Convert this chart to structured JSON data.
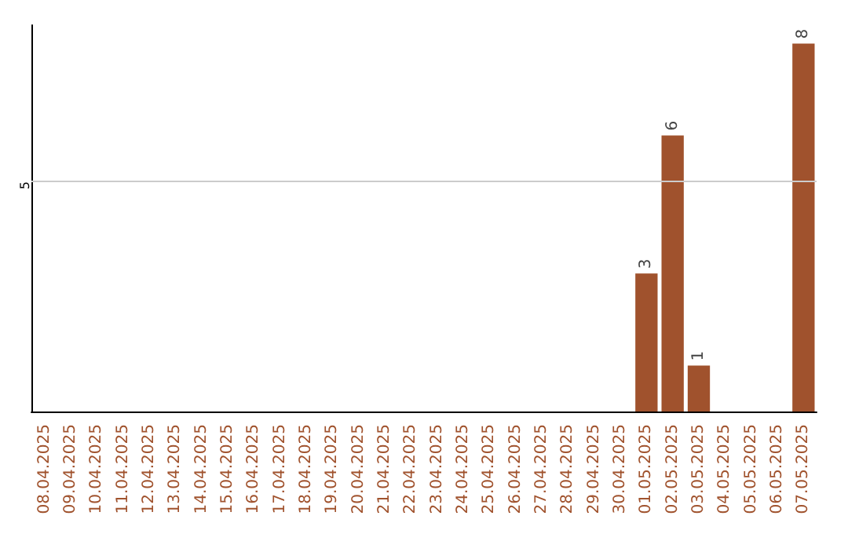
{
  "chart_data": {
    "type": "bar",
    "ylim": [
      0,
      8.4
    ],
    "categories": [
      "08.04.2025",
      "09.04.2025",
      "10.04.2025",
      "11.04.2025",
      "12.04.2025",
      "13.04.2025",
      "14.04.2025",
      "15.04.2025",
      "16.04.2025",
      "17.04.2025",
      "18.04.2025",
      "19.04.2025",
      "20.04.2025",
      "21.04.2025",
      "22.04.2025",
      "23.04.2025",
      "24.04.2025",
      "25.04.2025",
      "26.04.2025",
      "27.04.2025",
      "28.04.2025",
      "29.04.2025",
      "30.04.2025",
      "01.05.2025",
      "02.05.2025",
      "03.05.2025",
      "04.05.2025",
      "05.05.2025",
      "06.05.2025",
      "07.05.2025"
    ],
    "values": [
      null,
      null,
      null,
      null,
      null,
      null,
      null,
      null,
      null,
      null,
      null,
      null,
      null,
      null,
      null,
      null,
      null,
      null,
      null,
      null,
      null,
      null,
      null,
      3,
      6,
      1,
      null,
      null,
      null,
      8
    ],
    "data_labels": true,
    "color": "#a0522d",
    "ref_lines": [
      {
        "axis": "y",
        "value": 5,
        "label": "5",
        "color": "#cccccc"
      }
    ]
  }
}
